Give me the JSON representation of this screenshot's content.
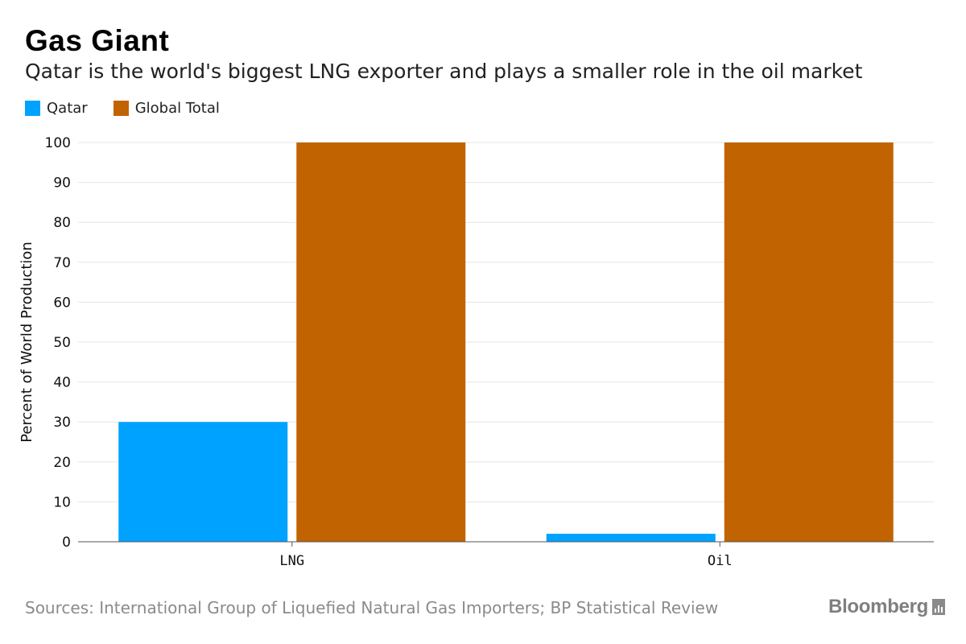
{
  "header": {
    "title": "Gas Giant",
    "subtitle": "Qatar is the world's biggest LNG exporter and plays a smaller role in the oil market"
  },
  "legend": [
    {
      "label": "Qatar",
      "color": "#00a2ff"
    },
    {
      "label": "Global Total",
      "color": "#c26302"
    }
  ],
  "footer": {
    "source": "Sources: International Group of Liquefied Natural Gas Importers; BP Statistical Review",
    "brand": "Bloomberg",
    "brand_icon": "bar-chart-icon"
  },
  "chart_data": {
    "type": "bar",
    "categories": [
      "LNG",
      "Oil"
    ],
    "series": [
      {
        "name": "Qatar",
        "values": [
          30,
          2
        ],
        "color": "#00a2ff"
      },
      {
        "name": "Global Total",
        "values": [
          100,
          100
        ],
        "color": "#c26302"
      }
    ],
    "xlabel": "",
    "ylabel": "Percent of World Production",
    "ylim": [
      0,
      100
    ],
    "yticks": [
      0,
      10,
      20,
      30,
      40,
      50,
      60,
      70,
      80,
      90,
      100
    ],
    "grid": true,
    "legend_position": "top-left"
  }
}
